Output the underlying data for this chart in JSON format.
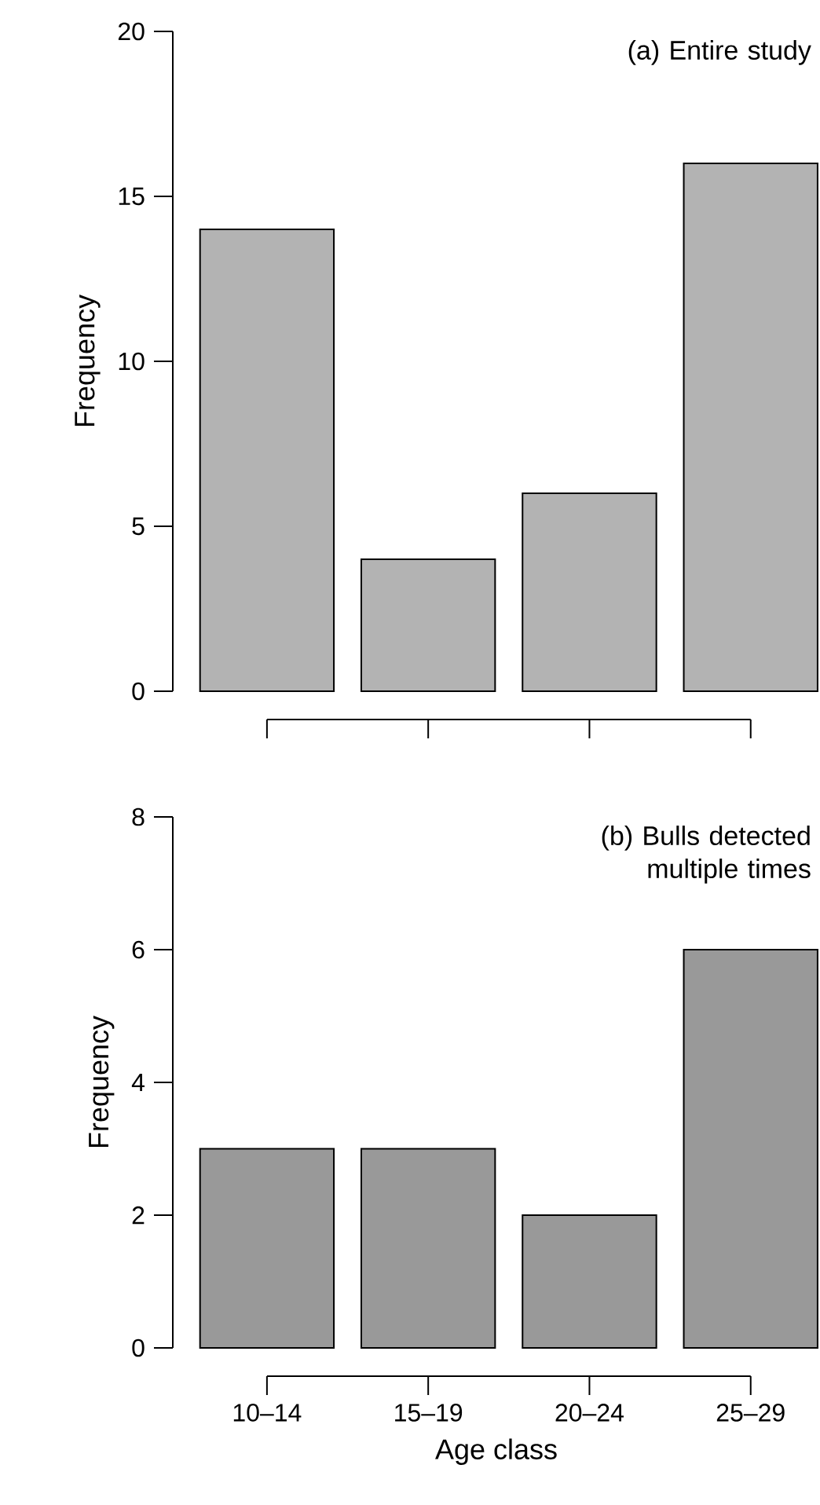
{
  "chart_data": [
    {
      "type": "bar",
      "categories": [
        null,
        null,
        null,
        null
      ],
      "values": [
        14,
        4,
        6,
        16
      ],
      "color": "#b3b3b3",
      "ylabel": "Frequency",
      "ylim": [
        0,
        20
      ],
      "yticks": [
        0,
        5,
        10,
        15,
        20
      ],
      "tick_labels": "y",
      "annotations": [
        "(a) Entire study"
      ]
    },
    {
      "type": "bar",
      "categories": [
        "10–14",
        "15–19",
        "20–24",
        "25–29"
      ],
      "values": [
        3,
        3,
        2,
        6
      ],
      "color": "#999999",
      "ylabel": "Frequency",
      "xlabel": "Age class",
      "ylim": [
        0,
        8
      ],
      "yticks": [
        0,
        2,
        4,
        6,
        8
      ],
      "annotations": [
        "(b) Bulls detected multiple times"
      ]
    }
  ]
}
